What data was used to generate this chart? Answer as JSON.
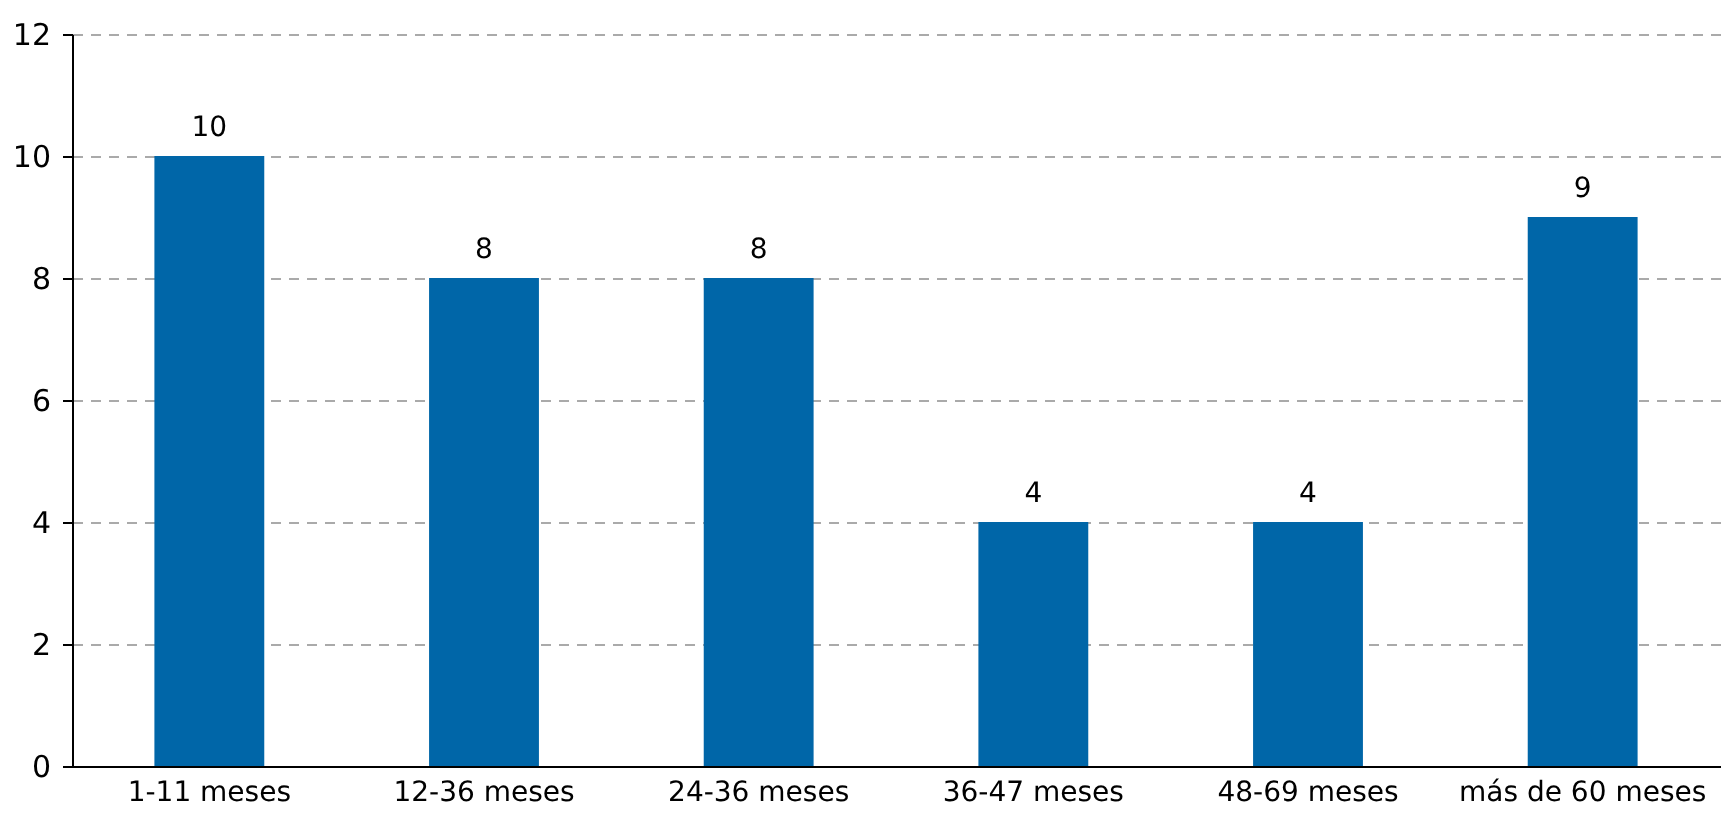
{
  "chart_data": {
    "type": "bar",
    "categories": [
      "1-11 meses",
      "12-36 meses",
      "24-36 meses",
      "36-47 meses",
      "48-69 meses",
      "más de 60 meses"
    ],
    "values": [
      10,
      8,
      8,
      4,
      4,
      9
    ],
    "color": "#0066a8",
    "ylim": [
      0,
      12
    ],
    "yticks": [
      0,
      2,
      4,
      6,
      8,
      10,
      12
    ],
    "grid": "y",
    "data_labels": true
  }
}
